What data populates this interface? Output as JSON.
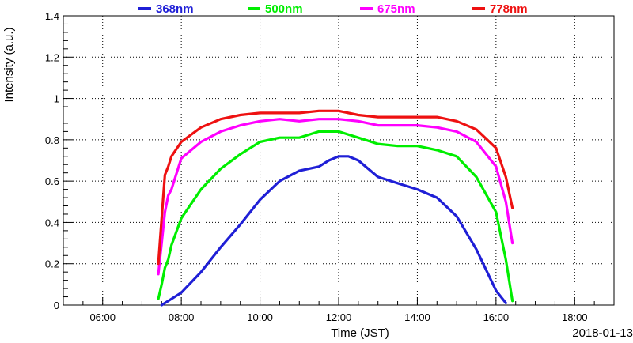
{
  "chart_data": {
    "type": "line",
    "title": "",
    "xlabel": "Time (JST)",
    "ylabel": "Intensity (a.u.)",
    "date_label": "2018-01-13",
    "xlim": [
      "05:00",
      "19:00"
    ],
    "ylim": [
      0,
      1.4
    ],
    "x_ticks": [
      "06:00",
      "08:00",
      "10:00",
      "12:00",
      "14:00",
      "16:00",
      "18:00"
    ],
    "y_ticks": [
      "0",
      "0.2",
      "0.4",
      "0.6",
      "0.8",
      "1",
      "1.2",
      "1.4"
    ],
    "grid": true,
    "legend_position": "top",
    "series": [
      {
        "name": "368nm",
        "color": "#1f1fd6",
        "x": [
          "07:30",
          "07:45",
          "08:00",
          "08:30",
          "09:00",
          "09:30",
          "10:00",
          "10:30",
          "11:00",
          "11:30",
          "11:45",
          "12:00",
          "12:15",
          "12:30",
          "12:45",
          "13:00",
          "13:30",
          "14:00",
          "14:30",
          "15:00",
          "15:30",
          "16:00",
          "16:15"
        ],
        "y": [
          0.0,
          0.03,
          0.06,
          0.16,
          0.28,
          0.39,
          0.51,
          0.6,
          0.65,
          0.67,
          0.7,
          0.72,
          0.72,
          0.7,
          0.66,
          0.62,
          0.59,
          0.56,
          0.52,
          0.43,
          0.27,
          0.07,
          0.01
        ]
      },
      {
        "name": "500nm",
        "color": "#00ee00",
        "x": [
          "07:25",
          "07:30",
          "07:35",
          "07:40",
          "07:45",
          "08:00",
          "08:30",
          "09:00",
          "09:30",
          "10:00",
          "10:30",
          "11:00",
          "11:30",
          "12:00",
          "12:30",
          "13:00",
          "13:30",
          "14:00",
          "14:30",
          "15:00",
          "15:30",
          "16:00",
          "16:15",
          "16:25"
        ],
        "y": [
          0.03,
          0.1,
          0.18,
          0.22,
          0.29,
          0.42,
          0.56,
          0.66,
          0.73,
          0.79,
          0.81,
          0.81,
          0.84,
          0.84,
          0.81,
          0.78,
          0.77,
          0.77,
          0.75,
          0.72,
          0.62,
          0.45,
          0.22,
          0.02
        ]
      },
      {
        "name": "675nm",
        "color": "#ff00ff",
        "x": [
          "07:25",
          "07:30",
          "07:35",
          "07:40",
          "07:45",
          "08:00",
          "08:30",
          "09:00",
          "09:30",
          "10:00",
          "10:30",
          "11:00",
          "11:30",
          "12:00",
          "12:30",
          "13:00",
          "13:30",
          "14:00",
          "14:30",
          "15:00",
          "15:30",
          "16:00",
          "16:15",
          "16:25"
        ],
        "y": [
          0.15,
          0.3,
          0.45,
          0.53,
          0.56,
          0.71,
          0.79,
          0.84,
          0.87,
          0.89,
          0.9,
          0.89,
          0.9,
          0.9,
          0.89,
          0.87,
          0.87,
          0.87,
          0.86,
          0.84,
          0.79,
          0.67,
          0.5,
          0.3
        ]
      },
      {
        "name": "778nm",
        "color": "#ee1111",
        "x": [
          "07:25",
          "07:30",
          "07:35",
          "07:40",
          "07:45",
          "08:00",
          "08:30",
          "09:00",
          "09:30",
          "10:00",
          "10:30",
          "11:00",
          "11:30",
          "12:00",
          "12:30",
          "13:00",
          "13:30",
          "14:00",
          "14:30",
          "15:00",
          "15:30",
          "16:00",
          "16:15",
          "16:25"
        ],
        "y": [
          0.2,
          0.42,
          0.63,
          0.67,
          0.72,
          0.79,
          0.86,
          0.9,
          0.92,
          0.93,
          0.93,
          0.93,
          0.94,
          0.94,
          0.92,
          0.91,
          0.91,
          0.91,
          0.91,
          0.89,
          0.85,
          0.76,
          0.62,
          0.47
        ]
      }
    ]
  }
}
